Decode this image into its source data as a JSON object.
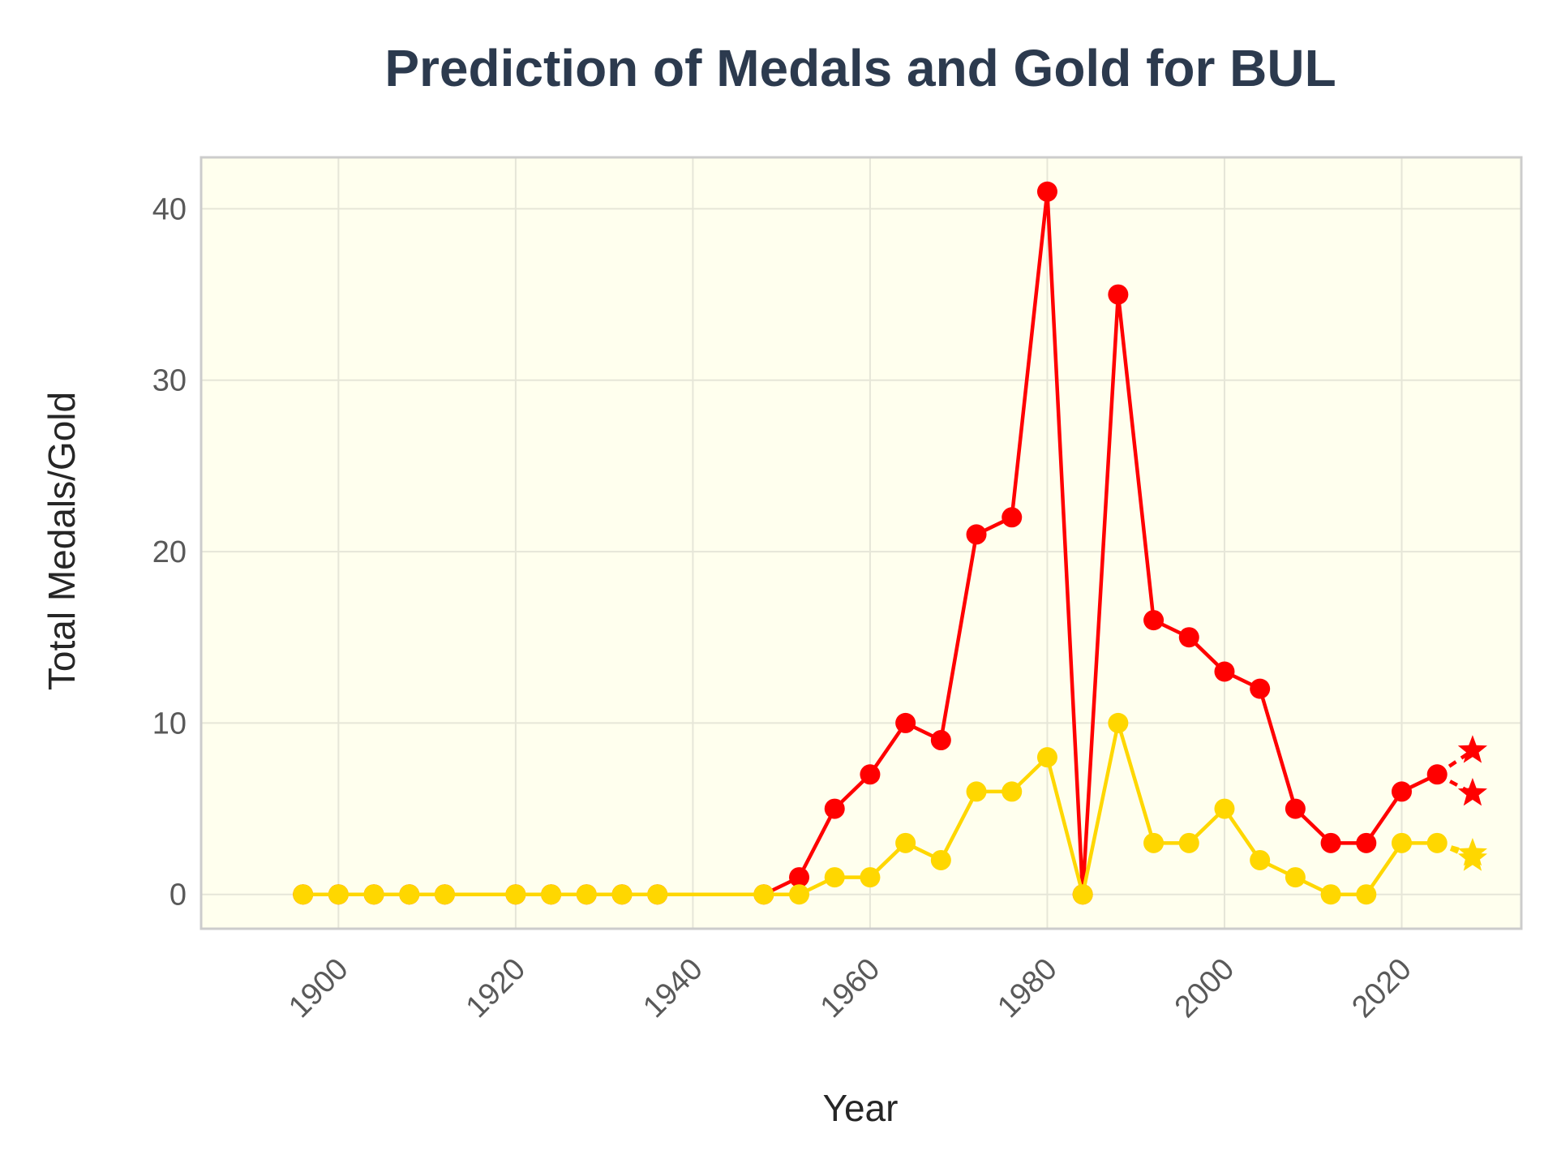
{
  "chart_data": {
    "type": "line",
    "title": "Prediction of Medals and Gold for BUL",
    "xlabel": "Year",
    "ylabel": "Total Medals/Gold",
    "xlim": [
      1884.5,
      2033.5
    ],
    "ylim": [
      -2,
      43
    ],
    "x_ticks": [
      1900,
      1920,
      1940,
      1960,
      1980,
      2000,
      2020
    ],
    "y_ticks": [
      0,
      10,
      20,
      30,
      40
    ],
    "grid": true,
    "legend": "none",
    "colors": {
      "background": "#ffffee",
      "frame": "#cccccc",
      "grid": "#e6e6d8",
      "medals": "#ff0000",
      "gold": "#ffd700"
    },
    "series": [
      {
        "key": "medals",
        "x": [
          1896,
          1900,
          1904,
          1908,
          1912,
          1920,
          1924,
          1928,
          1932,
          1936,
          1948,
          1952,
          1956,
          1960,
          1964,
          1968,
          1972,
          1976,
          1980,
          1984,
          1988,
          1992,
          1996,
          2000,
          2004,
          2008,
          2012,
          2016,
          2020,
          2024
        ],
        "values": [
          0,
          0,
          0,
          0,
          0,
          0,
          0,
          0,
          0,
          0,
          0,
          1,
          5,
          7,
          10,
          9,
          21,
          22,
          41,
          0,
          35,
          16,
          15,
          13,
          12,
          5,
          3,
          3,
          6,
          7
        ]
      },
      {
        "key": "gold",
        "x": [
          1896,
          1900,
          1904,
          1908,
          1912,
          1920,
          1924,
          1928,
          1932,
          1936,
          1948,
          1952,
          1956,
          1960,
          1964,
          1968,
          1972,
          1976,
          1980,
          1984,
          1988,
          1992,
          1996,
          2000,
          2004,
          2008,
          2012,
          2016,
          2020,
          2024
        ],
        "values": [
          0,
          0,
          0,
          0,
          0,
          0,
          0,
          0,
          0,
          0,
          0,
          0,
          1,
          1,
          3,
          2,
          6,
          6,
          8,
          0,
          10,
          3,
          3,
          5,
          2,
          1,
          0,
          0,
          3,
          3
        ]
      }
    ],
    "predictions": {
      "x": 2028,
      "medals": [
        8.4,
        5.9
      ],
      "gold": [
        2.4,
        2.1
      ]
    }
  }
}
